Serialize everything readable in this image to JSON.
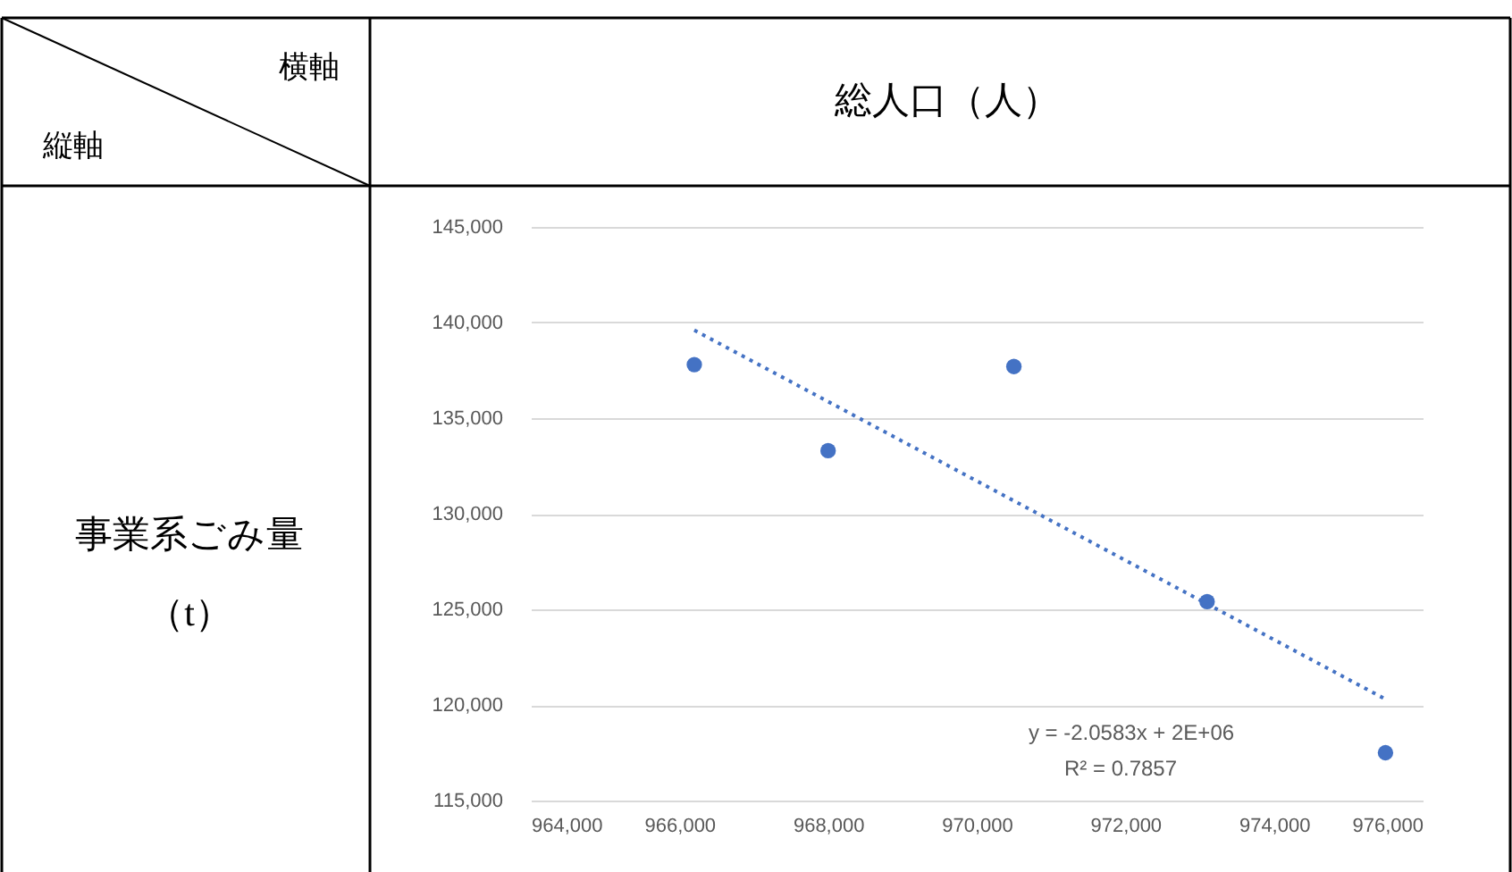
{
  "chart_data": {
    "type": "scatter",
    "xlabel": "総人口（人）",
    "ylabel": "事業系ごみ量（t）",
    "annotations": [
      "横軸",
      "縦軸",
      "y = -2.0583x + 2E+06",
      "R² = 0.7857"
    ],
    "x": [
      966200,
      968000,
      970500,
      973100,
      975500
    ],
    "series": [
      {
        "color": "#4472c4",
        "values": [
          137800,
          133300,
          137700,
          125400,
          117500
        ],
        "marker": "circle"
      },
      {
        "type": "line",
        "color": "#4472c4",
        "x": [
          966200,
          975500
        ],
        "values": [
          139600,
          120300
        ],
        "line_style": "dotted",
        "marker": "none"
      }
    ],
    "xlim": [
      964000,
      976000
    ],
    "xticks": [
      {
        "value": 964000,
        "label": "964,000"
      },
      {
        "value": 966000,
        "label": "966,000"
      },
      {
        "value": 968000,
        "label": "968,000"
      },
      {
        "value": 970000,
        "label": "970,000"
      },
      {
        "value": 972000,
        "label": "972,000"
      },
      {
        "value": 974000,
        "label": "974,000"
      },
      {
        "value": 976000,
        "label": "976,000"
      }
    ],
    "ylim": [
      115000,
      145000
    ],
    "yticks": [
      {
        "value": 115000,
        "label": "115,000"
      },
      {
        "value": 120000,
        "label": "120,000"
      },
      {
        "value": 125000,
        "label": "125,000"
      },
      {
        "value": 130000,
        "label": "130,000"
      },
      {
        "value": 135000,
        "label": "135,000"
      },
      {
        "value": 140000,
        "label": "140,000"
      },
      {
        "value": 145000,
        "label": "145,000"
      }
    ],
    "grid": "y"
  }
}
